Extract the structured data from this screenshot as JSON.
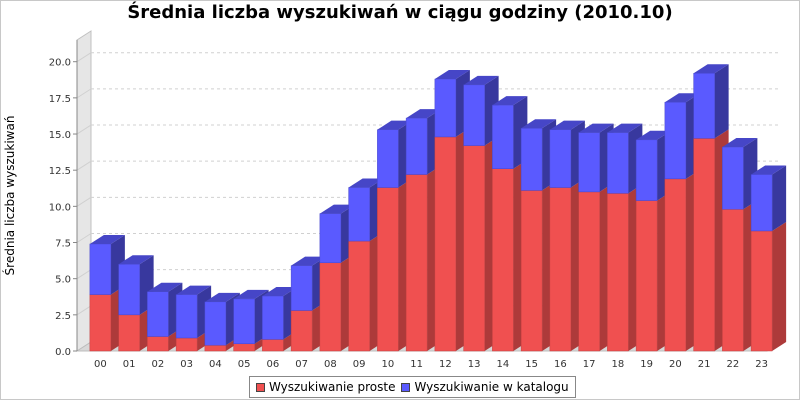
{
  "chart_data": {
    "type": "bar",
    "stacked": true,
    "style": "3d",
    "title": "Średnia liczba wyszukiwań w ciągu godziny (2010.10)",
    "xlabel": "",
    "ylabel": "Średnia liczba wyszukiwań",
    "ylim": [
      0,
      21.5
    ],
    "yticks": [
      "0.0",
      "2.5",
      "5.0",
      "7.5",
      "10.0",
      "12.5",
      "15.0",
      "17.5",
      "20.0"
    ],
    "grid": true,
    "legend_position": "bottom",
    "categories": [
      "00",
      "01",
      "02",
      "03",
      "04",
      "05",
      "06",
      "07",
      "08",
      "09",
      "10",
      "11",
      "12",
      "13",
      "14",
      "15",
      "16",
      "17",
      "18",
      "19",
      "20",
      "21",
      "22",
      "23"
    ],
    "series": [
      {
        "name": "Wyszukiwanie proste",
        "color": "#f05050",
        "values": [
          3.9,
          2.5,
          1.0,
          0.9,
          0.4,
          0.5,
          0.8,
          2.8,
          6.1,
          7.6,
          11.3,
          12.2,
          14.8,
          14.2,
          12.6,
          11.1,
          11.3,
          11.0,
          10.9,
          10.4,
          11.9,
          14.7,
          9.8,
          8.3
        ]
      },
      {
        "name": "Wyszukiwanie w katalogu",
        "color": "#5a5aff",
        "values": [
          3.5,
          3.5,
          3.1,
          3.0,
          3.0,
          3.1,
          3.0,
          3.1,
          3.4,
          3.7,
          4.0,
          3.9,
          4.0,
          4.2,
          4.4,
          4.3,
          4.0,
          4.1,
          4.2,
          4.2,
          5.3,
          4.5,
          4.3,
          3.9
        ]
      }
    ]
  }
}
